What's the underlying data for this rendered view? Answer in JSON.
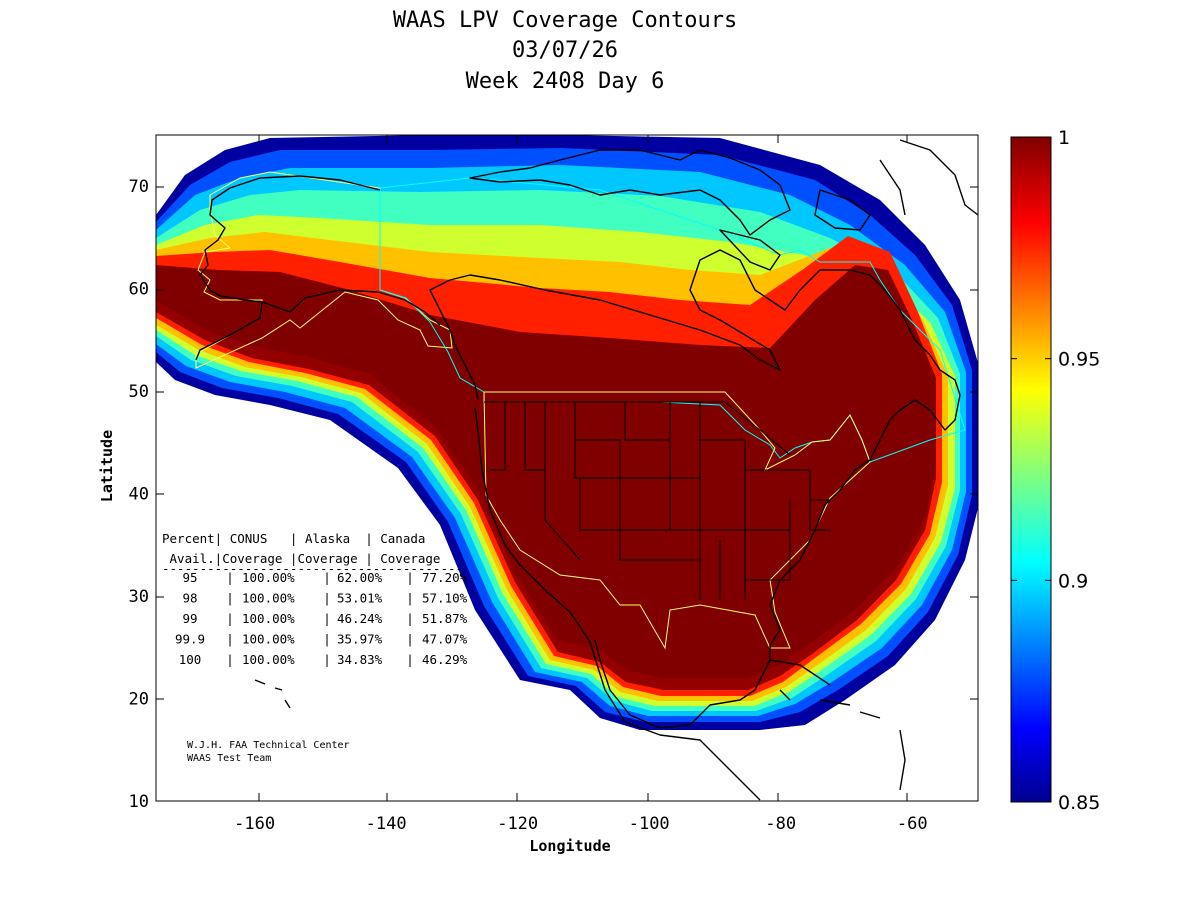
{
  "title": {
    "line1": "WAAS LPV Coverage Contours",
    "line2": "03/07/26",
    "line3": "Week 2408 Day 6"
  },
  "axes": {
    "xlabel": "Longitude",
    "ylabel": "Latitude",
    "xlim": [
      -175,
      -50
    ],
    "ylim": [
      10,
      75
    ],
    "xticks": [
      -160,
      -140,
      -120,
      -100,
      -80,
      -60
    ],
    "yticks": [
      10,
      20,
      30,
      40,
      50,
      60,
      70
    ],
    "xtick_labels": [
      "-160",
      "-140",
      "-120",
      "-100",
      "-80",
      "-60"
    ],
    "ytick_labels": [
      "10",
      "20",
      "30",
      "40",
      "50",
      "60",
      "70"
    ]
  },
  "colorbar": {
    "min": 0.85,
    "max": 1,
    "ticks": [
      1,
      0.95,
      0.9,
      0.85
    ],
    "tick_labels": [
      "1",
      "0.95",
      "0.9",
      "0.85"
    ],
    "colormap": "jet",
    "jet_stops": [
      "#00008f",
      "#0000ff",
      "#00ffff",
      "#ffff00",
      "#ff0000",
      "#800000"
    ]
  },
  "coverage_table": {
    "header1": "Percent| CONUS   | Alaska  | Canada",
    "header2": " Avail.|Coverage |Coverage | Coverage",
    "separator": "----------------------------------------",
    "columns": [
      "Percent Avail.",
      "CONUS Coverage",
      "Alaska Coverage",
      "Canada Coverage"
    ],
    "rows": [
      {
        "percent": "95",
        "conus": "100.00%",
        "alaska": "62.00%",
        "canada": "77.20%"
      },
      {
        "percent": "98",
        "conus": "100.00%",
        "alaska": "53.01%",
        "canada": "57.10%"
      },
      {
        "percent": "99",
        "conus": "100.00%",
        "alaska": "46.24%",
        "canada": "51.87%"
      },
      {
        "percent": "99.9",
        "conus": "100.00%",
        "alaska": "35.97%",
        "canada": "47.07%"
      },
      {
        "percent": "100",
        "conus": "100.00%",
        "alaska": "34.83%",
        "canada": "46.29%"
      }
    ]
  },
  "credits": {
    "line1": "W.J.H. FAA Technical Center",
    "line2": "WAAS Test Team"
  },
  "colors": {
    "frame": "#000000",
    "coastline": "#000000",
    "conus_boundary": "#ffff66",
    "alaska_boundary": "#ffff66",
    "canada_boundary": "#00ffff"
  }
}
